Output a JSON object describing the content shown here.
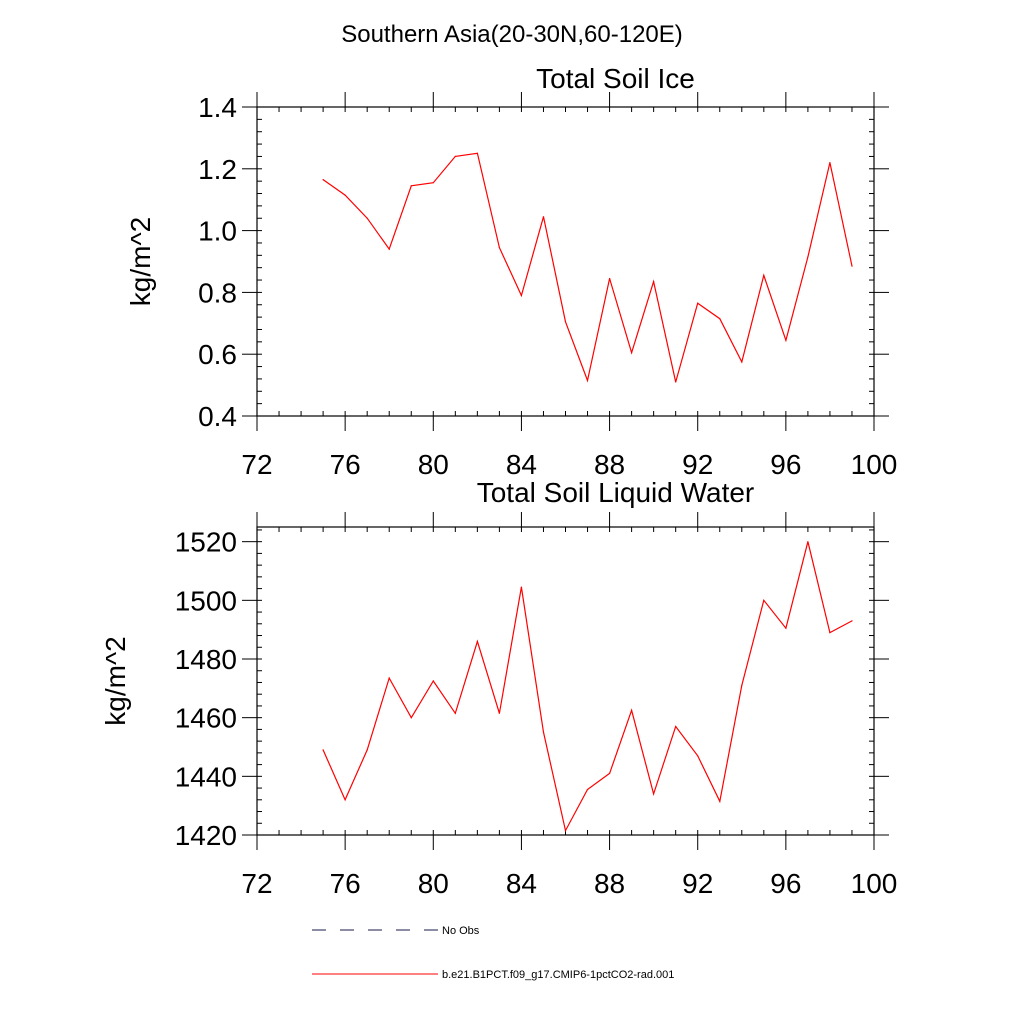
{
  "figure_title": "Southern Asia(20-30N,60-120E)",
  "legend": [
    {
      "label": "No Obs",
      "style": "dashed",
      "color": "#1a1a4a"
    },
    {
      "label": "b.e21.B1PCT.f09_g17.CMIP6-1pctCO2-rad.001",
      "style": "solid",
      "color": "#ff0000"
    }
  ],
  "chart_data": [
    {
      "type": "line",
      "title": "Total Soil Ice",
      "xlabel": "",
      "ylabel": "kg/m^2",
      "xlim": [
        72,
        100
      ],
      "ylim": [
        0.4,
        1.4
      ],
      "xticks": [
        72,
        76,
        80,
        84,
        88,
        92,
        96,
        100
      ],
      "yticks": [
        "0.4",
        "0.6",
        "0.8",
        "1.0",
        "1.2",
        "1.4"
      ],
      "yminor": 0.04,
      "xminor": 1,
      "series": [
        {
          "name": "b.e21.B1PCT.f09_g17.CMIP6-1pctCO2-rad.001",
          "color": "#ff0000",
          "x": [
            75,
            76,
            77,
            78,
            79,
            80,
            81,
            82,
            83,
            84,
            85,
            86,
            87,
            88,
            89,
            90,
            91,
            92,
            93,
            94,
            95,
            96,
            97,
            98,
            99
          ],
          "values": [
            1.165,
            1.115,
            1.04,
            0.94,
            1.145,
            1.155,
            1.24,
            1.25,
            0.945,
            0.79,
            1.045,
            0.705,
            0.515,
            0.845,
            0.605,
            0.835,
            0.51,
            0.765,
            0.715,
            0.575,
            0.855,
            0.645,
            0.915,
            1.22,
            0.885
          ]
        }
      ]
    },
    {
      "type": "line",
      "title": "Total Soil Liquid Water",
      "xlabel": "",
      "ylabel": "kg/m^2",
      "xlim": [
        72,
        100
      ],
      "ylim": [
        1420,
        1525
      ],
      "xticks": [
        72,
        76,
        80,
        84,
        88,
        92,
        96,
        100
      ],
      "yticks": [
        "1420",
        "1440",
        "1460",
        "1480",
        "1500",
        "1520"
      ],
      "yminor": 4,
      "xminor": 1,
      "series": [
        {
          "name": "b.e21.B1PCT.f09_g17.CMIP6-1pctCO2-rad.001",
          "color": "#ff0000",
          "x": [
            75,
            76,
            77,
            78,
            79,
            80,
            81,
            82,
            83,
            84,
            85,
            86,
            87,
            88,
            89,
            90,
            91,
            92,
            93,
            94,
            95,
            96,
            97,
            98,
            99
          ],
          "values": [
            1449,
            1432,
            1449,
            1473.5,
            1460,
            1472.5,
            1461.5,
            1486,
            1461.5,
            1504.5,
            1455,
            1421.5,
            1435.5,
            1441,
            1462.5,
            1434,
            1457,
            1447,
            1431.5,
            1471,
            1500,
            1490.5,
            1520,
            1489,
            1493
          ]
        }
      ]
    }
  ]
}
